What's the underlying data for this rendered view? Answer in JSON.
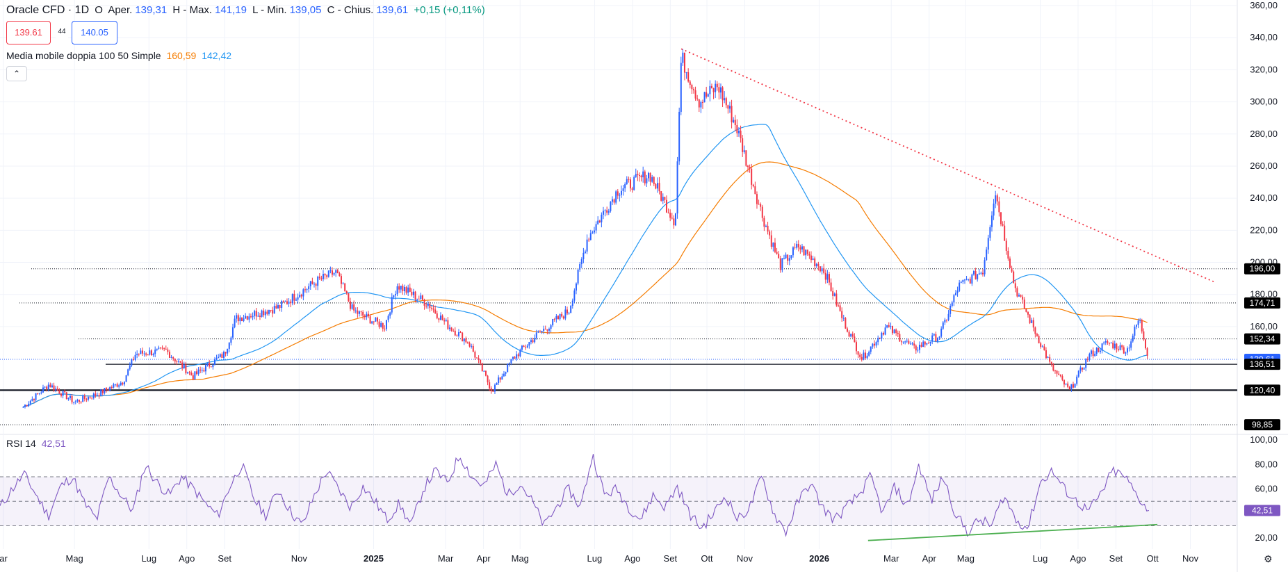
{
  "header": {
    "symbol": "Oracle CFD · 1D",
    "open_label": "O",
    "open_prefix": "Aper.",
    "open": "139,31",
    "high_prefix": "H - Max.",
    "high": "141,19",
    "low_prefix": "L - Min.",
    "low": "139,05",
    "close_prefix": "C - Chius.",
    "close": "139,61",
    "change": "+0,15 (+0,11%)"
  },
  "bid": "139.61",
  "spread": "44",
  "ask": "140.05",
  "ma_indicator": {
    "label": "Media mobile doppia 100 50 Simple",
    "ma1": "160,59",
    "ma2": "142,42"
  },
  "rsi_indicator": {
    "label": "RSI 14",
    "value": "42,51"
  },
  "collapse_icon": "chevron-up-icon",
  "colors": {
    "up": "#2962ff",
    "down": "#f23645",
    "ma_long": "#f57c00",
    "ma_short": "#2196f3",
    "rsi": "#7e57c2",
    "trend_down": "#f23645",
    "trend_up": "#4caf50"
  },
  "chart_data": [
    {
      "type": "candlestick",
      "title": "Oracle CFD · 1D",
      "x_ticks": [
        "ar",
        "Mag",
        "Lug",
        "Ago",
        "Set",
        "Nov",
        "2025",
        "Mar",
        "Apr",
        "Mag",
        "Lug",
        "Ago",
        "Set",
        "Ott",
        "Nov",
        "2026",
        "Mar",
        "Apr",
        "Mag",
        "Lug",
        "Ago",
        "Set",
        "Ott",
        "Nov"
      ],
      "y_ticks": [
        "360,00",
        "340,00",
        "320,00",
        "300,00",
        "280,00",
        "260,00",
        "240,00",
        "220,00",
        "200,00",
        "180,00",
        "160,00"
      ],
      "ylim": [
        95,
        360
      ],
      "price_series_key": [
        {
          "x": "2024-03-20",
          "y": 110
        },
        {
          "x": "2024-04-10",
          "y": 124
        },
        {
          "x": "2024-05-01",
          "y": 113
        },
        {
          "x": "2024-05-20",
          "y": 118
        },
        {
          "x": "2024-06-10",
          "y": 126
        },
        {
          "x": "2024-06-20",
          "y": 143
        },
        {
          "x": "2024-07-15",
          "y": 145
        },
        {
          "x": "2024-08-06",
          "y": 129
        },
        {
          "x": "2024-09-01",
          "y": 143
        },
        {
          "x": "2024-09-10",
          "y": 165
        },
        {
          "x": "2024-10-15",
          "y": 172
        },
        {
          "x": "2024-11-15",
          "y": 188
        },
        {
          "x": "2024-12-01",
          "y": 194
        },
        {
          "x": "2024-12-15",
          "y": 170
        },
        {
          "x": "2025-01-10",
          "y": 160
        },
        {
          "x": "2025-01-20",
          "y": 186
        },
        {
          "x": "2025-02-15",
          "y": 174
        },
        {
          "x": "2025-03-01",
          "y": 162
        },
        {
          "x": "2025-03-20",
          "y": 150
        },
        {
          "x": "2025-04-08",
          "y": 120
        },
        {
          "x": "2025-04-25",
          "y": 140
        },
        {
          "x": "2025-05-15",
          "y": 155
        },
        {
          "x": "2025-06-10",
          "y": 170
        },
        {
          "x": "2025-06-25",
          "y": 215
        },
        {
          "x": "2025-07-20",
          "y": 245
        },
        {
          "x": "2025-08-15",
          "y": 255
        },
        {
          "x": "2025-09-05",
          "y": 225
        },
        {
          "x": "2025-09-10",
          "y": 328
        },
        {
          "x": "2025-09-25",
          "y": 300
        },
        {
          "x": "2025-10-10",
          "y": 310
        },
        {
          "x": "2025-10-25",
          "y": 285
        },
        {
          "x": "2025-11-15",
          "y": 230
        },
        {
          "x": "2025-11-30",
          "y": 198
        },
        {
          "x": "2025-12-15",
          "y": 210
        },
        {
          "x": "2026-01-05",
          "y": 195
        },
        {
          "x": "2026-01-20",
          "y": 165
        },
        {
          "x": "2026-02-05",
          "y": 140
        },
        {
          "x": "2026-02-25",
          "y": 160
        },
        {
          "x": "2026-03-20",
          "y": 146
        },
        {
          "x": "2026-04-10",
          "y": 155
        },
        {
          "x": "2026-04-25",
          "y": 185
        },
        {
          "x": "2026-05-15",
          "y": 195
        },
        {
          "x": "2026-05-25",
          "y": 245
        },
        {
          "x": "2026-06-10",
          "y": 185
        },
        {
          "x": "2026-06-25",
          "y": 160
        },
        {
          "x": "2026-07-10",
          "y": 135
        },
        {
          "x": "2026-07-25",
          "y": 120
        },
        {
          "x": "2026-08-10",
          "y": 142
        },
        {
          "x": "2026-08-25",
          "y": 150
        },
        {
          "x": "2026-09-10",
          "y": 145
        },
        {
          "x": "2026-09-20",
          "y": 165
        },
        {
          "x": "2026-09-28",
          "y": 139.61
        }
      ],
      "horizontal_levels": [
        "196,00",
        "174,71",
        "152,34",
        "139,61",
        "136,51",
        "120,40",
        "98,85"
      ],
      "trendline_down": [
        {
          "x": "2025-09-10",
          "y": 333
        },
        {
          "x": "2026-11-20",
          "y": 188
        }
      ],
      "moving_averages": [
        {
          "name": "SMA 100",
          "value": "160,59"
        },
        {
          "name": "SMA 50",
          "value": "142,42"
        }
      ]
    },
    {
      "type": "line",
      "title": "RSI 14",
      "y_ticks": [
        "100,00",
        "80,00",
        "60,00",
        "20,00"
      ],
      "ylim": [
        15,
        100
      ],
      "bands": [
        30,
        50,
        70
      ],
      "series": [
        {
          "name": "RSI 14",
          "values": [
            45,
            60,
            72,
            55,
            38,
            62,
            70,
            48,
            35,
            70,
            55,
            42,
            80,
            65,
            55,
            70,
            60,
            48,
            38,
            62,
            80,
            52,
            38,
            60,
            42,
            30,
            55,
            75,
            60,
            45,
            62,
            50,
            35,
            48,
            30,
            60,
            75,
            65,
            88,
            70,
            62,
            80,
            55,
            65,
            50,
            30,
            45,
            60,
            45,
            88,
            55,
            60,
            45,
            35,
            55,
            45,
            62,
            40,
            28,
            40,
            55,
            35,
            45,
            70,
            40,
            25,
            50,
            65,
            45,
            35,
            45,
            55,
            70,
            40,
            62,
            45,
            80,
            50,
            70,
            40,
            25,
            35,
            30,
            55,
            35,
            28,
            65,
            75,
            60,
            50,
            42,
            55,
            75,
            70,
            55,
            42.51
          ]
        }
      ],
      "trendline_up": [
        {
          "x": "2026-02-10",
          "y": 18
        },
        {
          "x": "2026-10-05",
          "y": 31
        }
      ]
    }
  ]
}
